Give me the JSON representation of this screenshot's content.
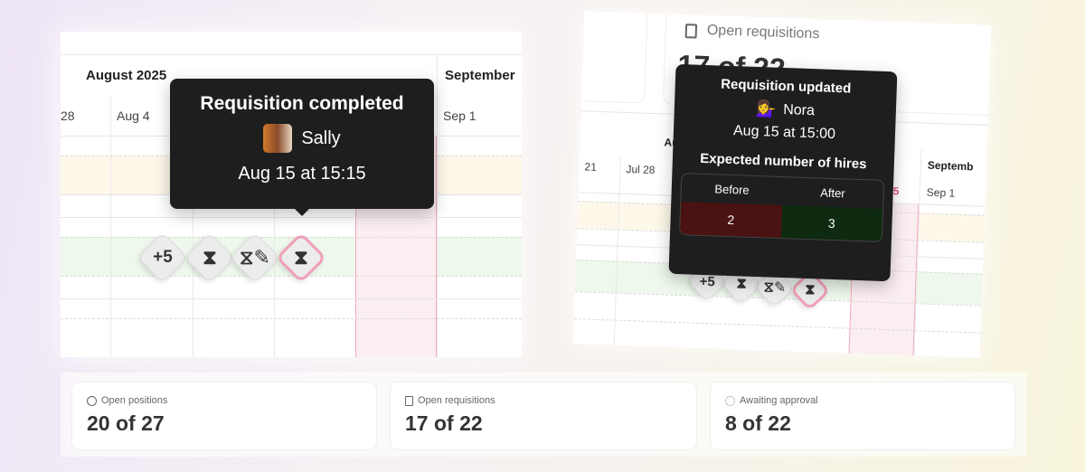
{
  "left": {
    "month_current": "August 2025",
    "month_next": "September",
    "days": [
      "28",
      "Aug 4",
      "Sep 1"
    ],
    "tooltip": {
      "title": "Requisition completed",
      "user": "Sally",
      "time": "Aug 15 at 15:15"
    },
    "markers": [
      {
        "label": "+5"
      },
      {
        "icon": "hourglass-icon"
      },
      {
        "icon": "hourglass-edit-icon"
      },
      {
        "icon": "hourglass-icon",
        "selected": true
      }
    ]
  },
  "right": {
    "card_label": "Open requisitions",
    "card_value": "17 of 22",
    "month_current": "Aug",
    "month_next": "Septemb",
    "days": [
      "21",
      "Jul 28",
      "5",
      "Sep 1"
    ],
    "tooltip": {
      "title": "Requisition updated",
      "user": "Nora",
      "user_emoji": "💁‍♀️",
      "time": "Aug 15 at 15:00",
      "section": "Expected number of hires",
      "before_label": "Before",
      "after_label": "After",
      "before": "2",
      "after": "3"
    },
    "markers": [
      {
        "label": "+5"
      }
    ]
  },
  "stats": [
    {
      "icon": "user-circle-icon",
      "label": "Open positions",
      "value": "20 of 27"
    },
    {
      "icon": "file-icon",
      "label": "Open requisitions",
      "value": "17 of 22"
    },
    {
      "icon": "loader-icon",
      "label": "Awaiting approval",
      "value": "8 of 22"
    }
  ],
  "colors": {
    "before_bg": "#4a1212",
    "after_bg": "#0e2a10",
    "highlight": "#f0a0b8",
    "today_col": "#fbe8ee"
  }
}
